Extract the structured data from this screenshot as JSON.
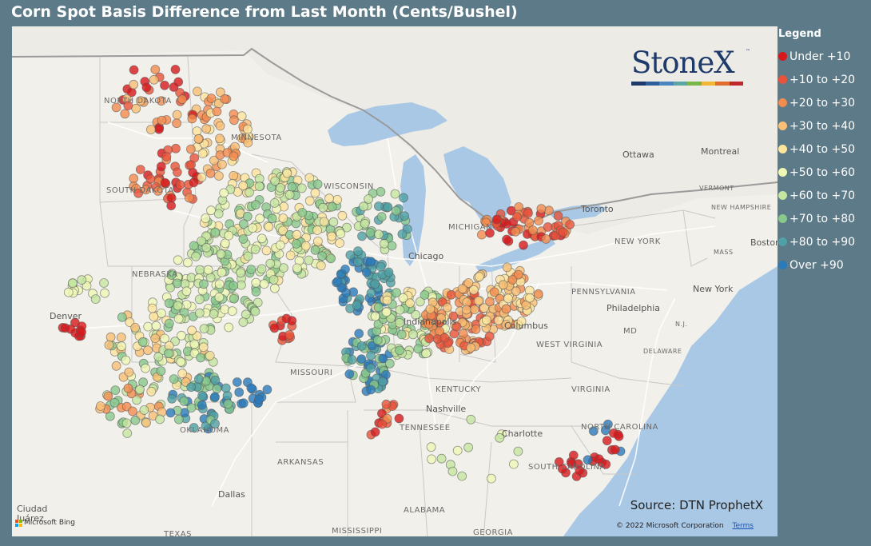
{
  "title": "Corn Spot Basis Difference from Last Month (Cents/Bushel)",
  "legend": {
    "title": "Legend",
    "items": [
      {
        "label": "Under +10",
        "color": "#d7191c"
      },
      {
        "label": "+10 to +20",
        "color": "#e8533a"
      },
      {
        "label": "+20 to +30",
        "color": "#f28c4f"
      },
      {
        "label": "+30 to +40",
        "color": "#f9bf76"
      },
      {
        "label": "+40 to +50",
        "color": "#fde59e"
      },
      {
        "label": "+50 to +60",
        "color": "#eff7b5"
      },
      {
        "label": "+60 to +70",
        "color": "#c4e6a0"
      },
      {
        "label": "+70 to +80",
        "color": "#88c98c"
      },
      {
        "label": "+80 to +90",
        "color": "#4fa1a5"
      },
      {
        "label": "Over +90",
        "color": "#2b7bba"
      }
    ]
  },
  "logo": {
    "text": "StoneX",
    "tm": "™",
    "bar_colors": [
      "#1e3a6b",
      "#2d5f9a",
      "#4c86c2",
      "#5aa6a0",
      "#7ab648",
      "#f2b632",
      "#e06d2c",
      "#c0282d"
    ]
  },
  "source": "Source: DTN ProphetX",
  "copyright": {
    "text": "© 2022 Microsoft Corporation",
    "terms": "Terms"
  },
  "bing": "Microsoft Bing",
  "places": [
    {
      "label": "NORTH DAKOTA",
      "type": "state"
    },
    {
      "label": "SOUTH DAKOTA",
      "type": "state"
    },
    {
      "label": "MINNESOTA",
      "type": "state"
    },
    {
      "label": "WISCONSIN",
      "type": "state"
    },
    {
      "label": "NEBRASKA",
      "type": "state"
    },
    {
      "label": "MISSOURI",
      "type": "state"
    },
    {
      "label": "KENTUCKY",
      "type": "state"
    },
    {
      "label": "TENNESSEE",
      "type": "state"
    },
    {
      "label": "OKLAHOMA",
      "type": "state"
    },
    {
      "label": "ARKANSAS",
      "type": "state"
    },
    {
      "label": "ALABAMA",
      "type": "state"
    },
    {
      "label": "MISSISSIPPI",
      "type": "state"
    },
    {
      "label": "GEORGIA",
      "type": "state"
    },
    {
      "label": "TEXAS",
      "type": "state"
    },
    {
      "label": "MICHIGAN",
      "type": "state"
    },
    {
      "label": "PENNSYLVANIA",
      "type": "state"
    },
    {
      "label": "WEST VIRGINIA",
      "type": "state"
    },
    {
      "label": "VIRGINIA",
      "type": "state"
    },
    {
      "label": "NORTH CAROLINA",
      "type": "state"
    },
    {
      "label": "SOUTH CAROLINA",
      "type": "state"
    },
    {
      "label": "NEW YORK",
      "type": "state"
    },
    {
      "label": "VERMONT",
      "type": "state"
    },
    {
      "label": "NEW HAMPSHIRE",
      "type": "state"
    },
    {
      "label": "MASS",
      "type": "state"
    },
    {
      "label": "MD",
      "type": "state"
    },
    {
      "label": "DELAWARE",
      "type": "state"
    },
    {
      "label": "N.J.",
      "type": "state"
    },
    {
      "label": "Chicago",
      "type": "city"
    },
    {
      "label": "Denver",
      "type": "city"
    },
    {
      "label": "Dallas",
      "type": "city"
    },
    {
      "label": "Nashville",
      "type": "city"
    },
    {
      "label": "Columbus",
      "type": "city"
    },
    {
      "label": "Philadelphia",
      "type": "city"
    },
    {
      "label": "New York",
      "type": "city"
    },
    {
      "label": "Boston",
      "type": "city"
    },
    {
      "label": "Ottawa",
      "type": "city"
    },
    {
      "label": "Montreal",
      "type": "city"
    },
    {
      "label": "Toronto",
      "type": "city"
    },
    {
      "label": "Charlotte",
      "type": "city"
    },
    {
      "label": "Indianapolis",
      "type": "city"
    },
    {
      "label": "Ciudad",
      "type": "city"
    },
    {
      "label": "Juárez",
      "type": "city"
    }
  ]
}
